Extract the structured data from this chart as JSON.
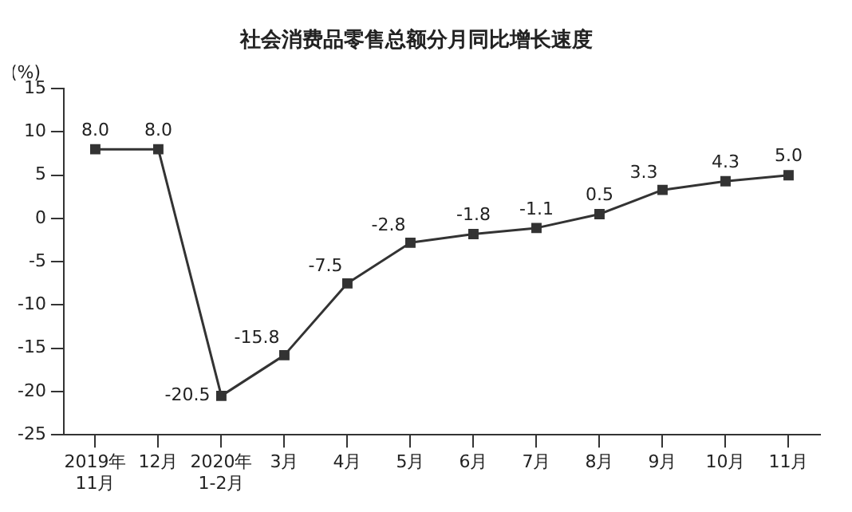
{
  "chart_data": {
    "type": "line",
    "title": "社会消费品零售总额分月同比增长速度",
    "ylabel": "(%)",
    "categories": [
      "2019年\n11月",
      "12月",
      "2020年\n1-2月",
      "3月",
      "4月",
      "5月",
      "6月",
      "7月",
      "8月",
      "9月",
      "10月",
      "11月"
    ],
    "series": [
      {
        "color": "#333333",
        "values": [
          8.0,
          8.0,
          -20.5,
          -15.8,
          -7.5,
          -2.8,
          -1.8,
          -1.1,
          0.5,
          3.3,
          4.3,
          5.0
        ],
        "value_labels": [
          "8.0",
          "8.0",
          "-20.5",
          "-15.8",
          "-7.5",
          "-2.8",
          "-1.8",
          "-1.1",
          "0.5",
          "3.3",
          "4.3",
          "5.0"
        ]
      }
    ],
    "ylim": [
      -25,
      15
    ],
    "yticks": [
      -25,
      -20,
      -15,
      -10,
      -5,
      0,
      5,
      10,
      15
    ],
    "marker": "square",
    "line_style": "solid",
    "grid": false,
    "legend": false
  }
}
